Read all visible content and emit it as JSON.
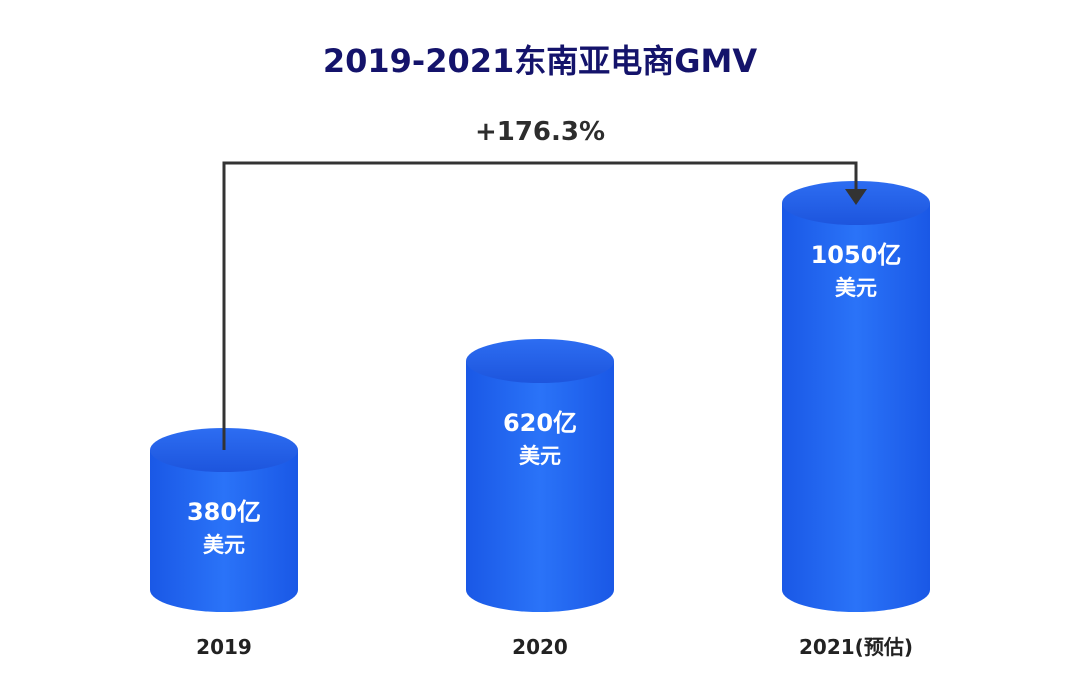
{
  "chart_data": {
    "type": "bar",
    "title": "2019-2021东南亚电商GMV",
    "categories": [
      "2019",
      "2020",
      "2021(预估)"
    ],
    "values": [
      380,
      620,
      1050
    ],
    "value_labels": [
      "380亿",
      "620亿",
      "1050亿"
    ],
    "unit_label": "美元",
    "annotation": "+176.3%",
    "grid": false,
    "legend": "none"
  },
  "colors": {
    "bar_top": "#1f5ff3",
    "bar_body_light": "#2a73f8",
    "bar_body_dark": "#1850d8",
    "title": "#14136b",
    "connector": "#333333"
  }
}
